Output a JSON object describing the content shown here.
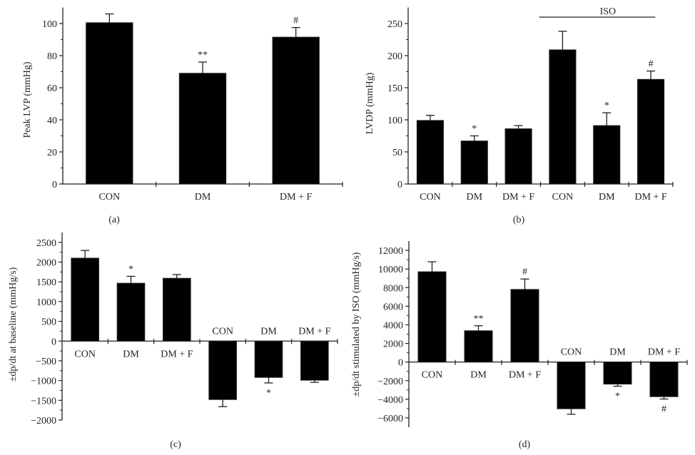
{
  "chart_data": [
    {
      "type": "bar",
      "panel_label": "(a)",
      "ylabel": "Peak LVP (mmHg)",
      "xlabel": "",
      "categories": [
        "CON",
        "DM",
        "DM + F"
      ],
      "values": [
        100.5,
        69,
        91.5
      ],
      "errors": [
        5.5,
        7,
        6
      ],
      "annotations": [
        "",
        "**",
        "#"
      ],
      "ylim": [
        0,
        110
      ],
      "yticks": [
        0,
        20,
        40,
        60,
        80,
        100
      ],
      "group_label": null
    },
    {
      "type": "bar",
      "panel_label": "(b)",
      "ylabel": "LVDP (mmHg)",
      "xlabel": "",
      "categories": [
        "CON",
        "DM",
        "DM + F",
        "CON",
        "DM",
        "DM + F"
      ],
      "values": [
        99,
        67,
        86,
        209,
        91,
        163
      ],
      "errors": [
        8,
        8,
        5,
        29,
        20,
        13
      ],
      "annotations": [
        "",
        "*",
        "",
        "",
        "*",
        "#"
      ],
      "ylim": [
        0,
        275
      ],
      "yticks": [
        0,
        50,
        100,
        150,
        200,
        250
      ],
      "group_label": {
        "text": "ISO",
        "from": 3,
        "to": 5
      }
    },
    {
      "type": "bar",
      "panel_label": "(c)",
      "ylabel": "±dp/dt at baseline (mmHg/s)",
      "xlabel": "",
      "categories": [
        "CON",
        "DM",
        "DM + F",
        "CON",
        "DM",
        "DM + F"
      ],
      "values": [
        2100,
        1465,
        1590,
        -1480,
        -920,
        -990
      ],
      "errors": [
        195,
        175,
        95,
        180,
        140,
        55
      ],
      "annotations": [
        "",
        "*",
        "",
        "",
        "*",
        ""
      ],
      "ylim": [
        -2000,
        2750
      ],
      "yticks": [
        -2000,
        -1500,
        -1000,
        -500,
        0,
        500,
        1000,
        1500,
        2000,
        2500
      ],
      "group_label": null
    },
    {
      "type": "bar",
      "panel_label": "(d)",
      "ylabel": "±dp/dt stimulated by ISO (mmHg/s)",
      "xlabel": "",
      "categories": [
        "CON",
        "DM",
        "DM + F",
        "CON",
        "DM",
        "DM + F"
      ],
      "values": [
        9700,
        3360,
        7800,
        -5020,
        -2370,
        -3720
      ],
      "errors": [
        1070,
        540,
        1120,
        590,
        230,
        255
      ],
      "annotations": [
        "",
        "**",
        "#",
        "",
        "*",
        "#"
      ],
      "ylim": [
        -7000,
        13000
      ],
      "yticks": [
        -6000,
        -4000,
        -2000,
        0,
        2000,
        4000,
        6000,
        8000,
        10000,
        12000
      ],
      "group_label": null
    }
  ]
}
